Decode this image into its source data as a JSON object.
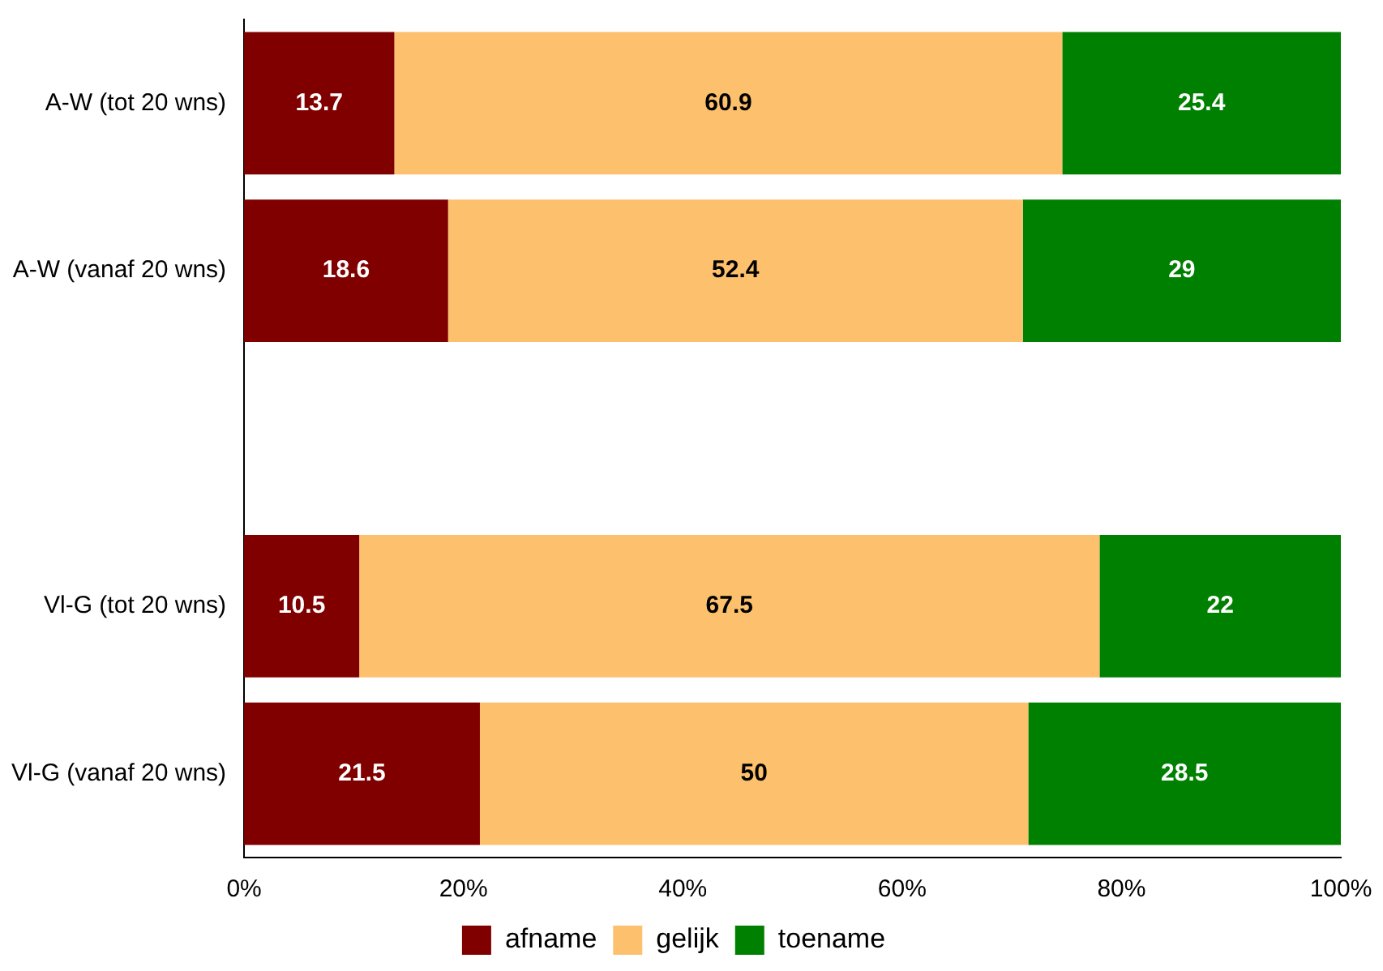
{
  "chart_data": {
    "type": "bar",
    "orientation": "horizontal",
    "stacked": true,
    "categories": [
      "A-W (tot 20 wns)",
      "A-W (vanaf 20 wns)",
      null,
      "Vl-G (tot 20 wns)",
      "Vl-G (vanaf 20 wns)"
    ],
    "series": [
      {
        "name": "afname",
        "color": "#800000",
        "values": [
          13.7,
          18.6,
          null,
          10.5,
          21.5
        ]
      },
      {
        "name": "gelijk",
        "color": "#fdc06c",
        "values": [
          60.9,
          52.4,
          null,
          67.5,
          50
        ]
      },
      {
        "name": "toename",
        "color": "#008000",
        "values": [
          25.4,
          29,
          null,
          22,
          28.5
        ]
      }
    ],
    "xlim": [
      0,
      100
    ],
    "xticks": [
      {
        "value": 0,
        "label": "0%"
      },
      {
        "value": 20,
        "label": "20%"
      },
      {
        "value": 40,
        "label": "40%"
      },
      {
        "value": 60,
        "label": "60%"
      },
      {
        "value": 80,
        "label": "80%"
      },
      {
        "value": 100,
        "label": "100%"
      }
    ],
    "data_labels": true,
    "grid": false,
    "legend": "bottom"
  }
}
